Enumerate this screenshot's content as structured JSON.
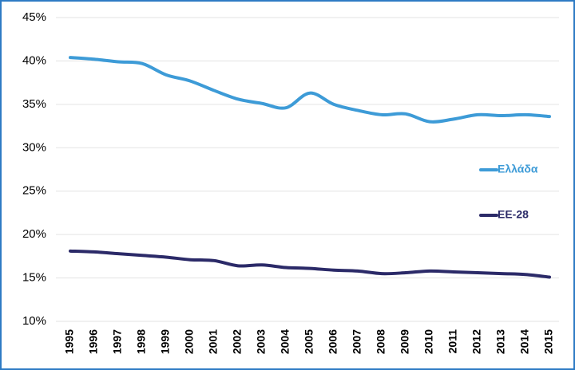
{
  "chart_data": {
    "type": "line",
    "categories": [
      "1995",
      "1996",
      "1997",
      "1998",
      "1999",
      "2000",
      "2001",
      "2002",
      "2003",
      "2004",
      "2005",
      "2006",
      "2007",
      "2008",
      "2009",
      "2010",
      "2011",
      "2012",
      "2013",
      "2014",
      "2015"
    ],
    "series": [
      {
        "name": "Ελλάδα",
        "color": "#3d9bd7",
        "values": [
          40.4,
          40.2,
          39.9,
          39.7,
          38.4,
          37.7,
          36.6,
          35.6,
          35.1,
          34.6,
          36.3,
          35.0,
          34.3,
          33.8,
          33.9,
          33.0,
          33.3,
          33.8,
          33.7,
          33.8,
          33.6
        ]
      },
      {
        "name": "ΕΕ-28",
        "color": "#2b2a68",
        "values": [
          18.1,
          18.0,
          17.8,
          17.6,
          17.4,
          17.1,
          17.0,
          16.4,
          16.5,
          16.2,
          16.1,
          15.9,
          15.8,
          15.5,
          15.6,
          15.8,
          15.7,
          15.6,
          15.5,
          15.4,
          15.1
        ]
      }
    ],
    "ylim": [
      10,
      45
    ],
    "yticks": [
      {
        "value": 10,
        "label": "10%"
      },
      {
        "value": 15,
        "label": "15%"
      },
      {
        "value": 20,
        "label": "20%"
      },
      {
        "value": 25,
        "label": "25%"
      },
      {
        "value": 30,
        "label": "30%"
      },
      {
        "value": 35,
        "label": "35%"
      },
      {
        "value": 40,
        "label": "40%"
      },
      {
        "value": 45,
        "label": "45%"
      }
    ],
    "grid": true,
    "legend": "right"
  }
}
